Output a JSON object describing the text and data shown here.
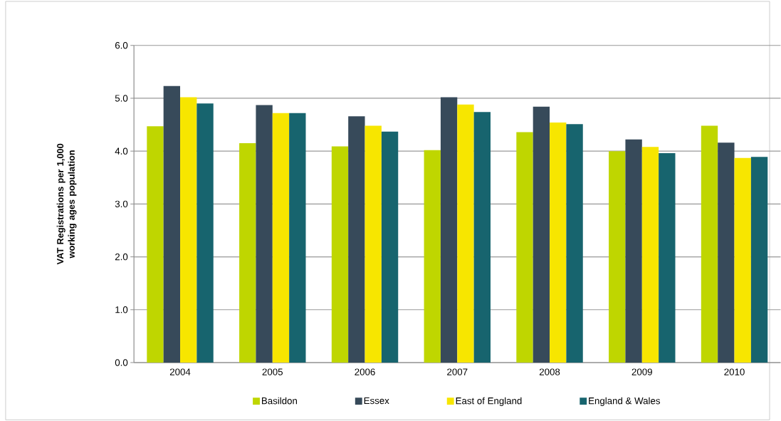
{
  "chart_data": {
    "type": "bar",
    "ylabel": "VAT Registrations per 1,000 working ages population",
    "categories": [
      "2004",
      "2005",
      "2006",
      "2007",
      "2008",
      "2009",
      "2010"
    ],
    "series": [
      {
        "name": "Basildon",
        "color": "#bfd600",
        "values": [
          4.47,
          4.15,
          4.09,
          4.02,
          4.36,
          4.0,
          4.48
        ]
      },
      {
        "name": "Essex",
        "color": "#374a5a",
        "values": [
          5.23,
          4.87,
          4.66,
          5.02,
          4.84,
          4.22,
          4.16
        ]
      },
      {
        "name": "East of England",
        "color": "#f7e600",
        "values": [
          5.02,
          4.72,
          4.48,
          4.88,
          4.54,
          4.08,
          3.87
        ]
      },
      {
        "name": "England & Wales",
        "color": "#17646e",
        "values": [
          4.9,
          4.72,
          4.37,
          4.74,
          4.51,
          3.96,
          3.89
        ]
      }
    ],
    "ylim": [
      0,
      6
    ],
    "yticks": [
      {
        "value": 0,
        "label": "0.0"
      },
      {
        "value": 1,
        "label": "1.0"
      },
      {
        "value": 2,
        "label": "2.0"
      },
      {
        "value": 3,
        "label": "3.0"
      },
      {
        "value": 4,
        "label": "4.0"
      },
      {
        "value": 5,
        "label": "5.0"
      },
      {
        "value": 6,
        "label": "6.0"
      }
    ],
    "grid": "y",
    "legend": "bottom"
  }
}
